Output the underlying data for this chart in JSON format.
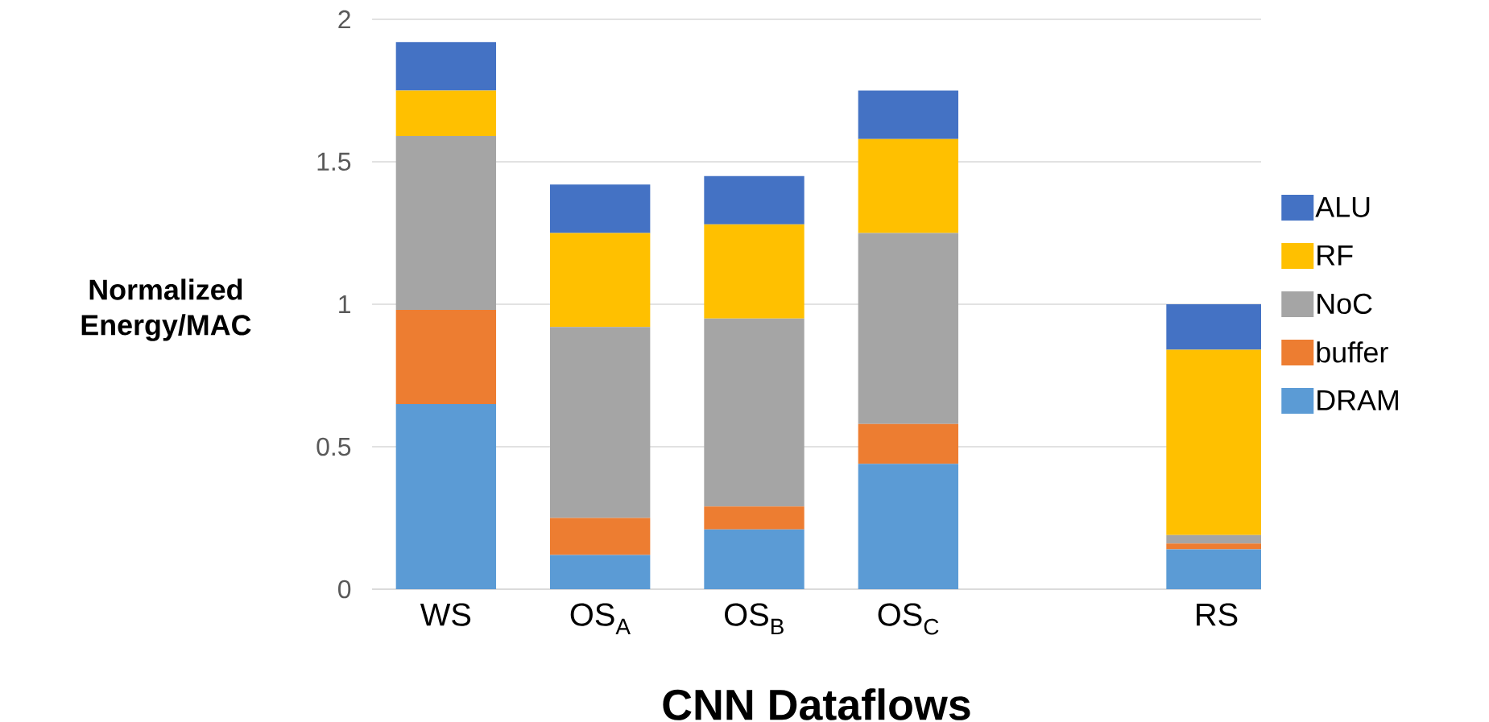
{
  "chart_data": {
    "type": "bar",
    "stacked": true,
    "xlabel": "CNN Dataflows",
    "ylabel": "Normalized Energy/MAC",
    "categories": [
      "WS",
      "OS$_{A}$",
      "OS$_{B}$",
      "OS$_{C}$",
      null,
      "RS"
    ],
    "series": [
      {
        "name": "DRAM",
        "color": "#5b9bd5",
        "values": [
          0.65,
          0.12,
          0.21,
          0.44,
          null,
          0.14
        ]
      },
      {
        "name": "buffer",
        "color": "#ed7d31",
        "values": [
          0.33,
          0.13,
          0.08,
          0.14,
          null,
          0.02
        ]
      },
      {
        "name": "NoC",
        "color": "#a5a5a5",
        "values": [
          0.61,
          0.67,
          0.66,
          0.67,
          null,
          0.03
        ]
      },
      {
        "name": "RF",
        "color": "#ffc000",
        "values": [
          0.16,
          0.33,
          0.33,
          0.33,
          null,
          0.65
        ]
      },
      {
        "name": "ALU",
        "color": "#4472c4",
        "values": [
          0.17,
          0.17,
          0.17,
          0.17,
          null,
          0.16
        ]
      }
    ],
    "ylim": [
      0,
      2
    ],
    "yticks": [
      0,
      0.5,
      1,
      1.5,
      2
    ],
    "grid": "y",
    "legend": "right"
  }
}
